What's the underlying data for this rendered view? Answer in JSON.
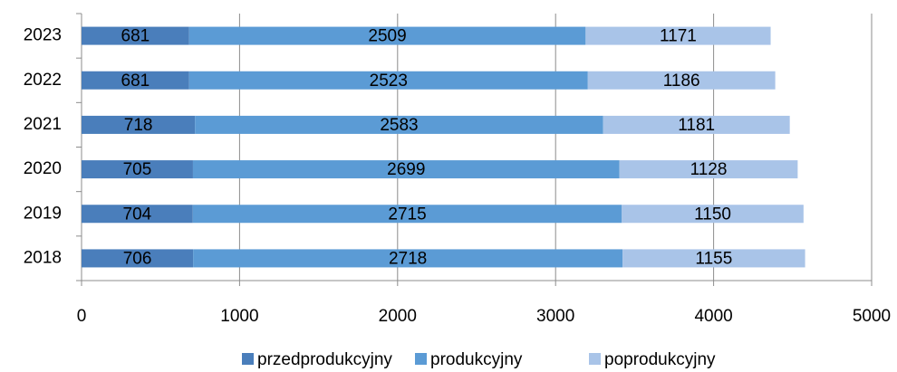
{
  "chart_data": {
    "type": "bar",
    "orientation": "horizontal",
    "stacked": true,
    "categories": [
      "2023",
      "2022",
      "2021",
      "2020",
      "2019",
      "2018"
    ],
    "series": [
      {
        "name": "przedprodukcyjny",
        "color": "#4a7ebb",
        "values": [
          681,
          681,
          718,
          705,
          704,
          706
        ]
      },
      {
        "name": "produkcyjny",
        "color": "#5b9bd5",
        "values": [
          2509,
          2523,
          2583,
          2699,
          2715,
          2718
        ]
      },
      {
        "name": "poprodukcyjny",
        "color": "#a9c4e8",
        "values": [
          1171,
          1186,
          1181,
          1128,
          1150,
          1155
        ]
      }
    ],
    "xlim": [
      0,
      5000
    ],
    "xticks": [
      0,
      1000,
      2000,
      3000,
      4000,
      5000
    ],
    "grid": true,
    "legend": "bottom",
    "data_labels": true
  }
}
